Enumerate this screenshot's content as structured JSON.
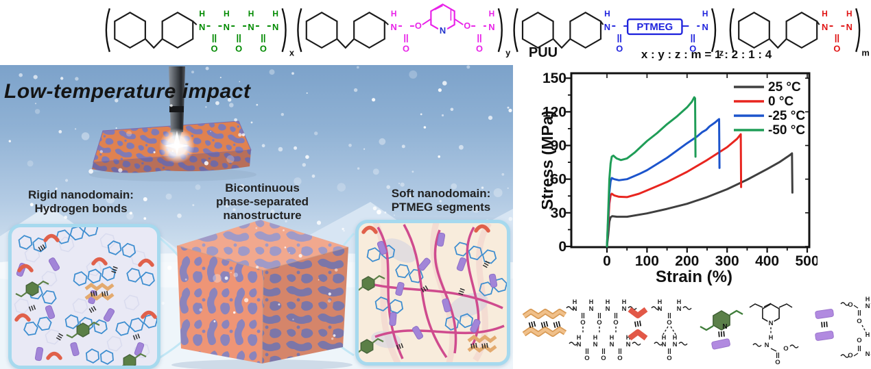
{
  "polymer": {
    "name": "PUU",
    "ratio": "x : y : z : m = 1 : 2 : 1 : 4",
    "ptmeg": "PTMEG",
    "sub_x": "x",
    "sub_y": "y",
    "sub_z": "z",
    "sub_m": "m",
    "H": "H",
    "N": "N",
    "O": "O",
    "colors": {
      "backbone": "#1b1b1b",
      "biuret": "#008a00",
      "carbamate": "#e822e8",
      "pyridine_n": "#2233cc",
      "ptmeg": "#2024dd",
      "urea": "#e01414"
    }
  },
  "scene": {
    "title": "Low-temperature impact",
    "rigid_label": [
      "Rigid nanodomain:",
      "Hydrogen bonds"
    ],
    "bicontinuous_label": [
      "Bicontinuous",
      "phase-separated",
      "nanostructure"
    ],
    "soft_label": [
      "Soft nanodomain:",
      "PTMEG segments"
    ],
    "colors": {
      "phase_orange": "#ee9576",
      "phase_purple": "#8b84bb"
    }
  },
  "chart_data": {
    "type": "line",
    "title": "",
    "xlabel": "Strain (%)",
    "ylabel": "Stress (MPa)",
    "xlim": [
      0,
      500
    ],
    "ylim": [
      0,
      150
    ],
    "x_ticks": [
      0,
      100,
      200,
      300,
      400,
      500
    ],
    "y_ticks": [
      0,
      30,
      60,
      90,
      120,
      150
    ],
    "grid": false,
    "legend_position": "top-right",
    "series": [
      {
        "name": "25 °C",
        "color": "#3f3f3f",
        "points": [
          [
            0,
            0
          ],
          [
            3,
            10
          ],
          [
            6,
            22
          ],
          [
            9,
            26
          ],
          [
            13,
            27
          ],
          [
            25,
            26.5
          ],
          [
            50,
            26.5
          ],
          [
            100,
            29.5
          ],
          [
            150,
            33.5
          ],
          [
            200,
            38
          ],
          [
            250,
            44
          ],
          [
            300,
            51
          ],
          [
            350,
            59.5
          ],
          [
            400,
            69
          ],
          [
            430,
            75
          ],
          [
            455,
            81
          ],
          [
            462,
            83
          ],
          [
            463,
            48
          ]
        ]
      },
      {
        "name": "0 °C",
        "color": "#e8251f",
        "points": [
          [
            0,
            0
          ],
          [
            3,
            20
          ],
          [
            6,
            38
          ],
          [
            9,
            45.5
          ],
          [
            12,
            47
          ],
          [
            18,
            45.5
          ],
          [
            30,
            44.3
          ],
          [
            50,
            44
          ],
          [
            80,
            47
          ],
          [
            100,
            50
          ],
          [
            150,
            57.5
          ],
          [
            200,
            66.5
          ],
          [
            250,
            77
          ],
          [
            300,
            88.5
          ],
          [
            325,
            96
          ],
          [
            334,
            100
          ],
          [
            335,
            53
          ]
        ]
      },
      {
        "name": "-25 °C",
        "color": "#1c54cc",
        "points": [
          [
            0,
            0
          ],
          [
            3,
            25
          ],
          [
            6,
            48
          ],
          [
            9,
            58
          ],
          [
            12,
            61
          ],
          [
            18,
            60
          ],
          [
            30,
            59
          ],
          [
            50,
            60
          ],
          [
            80,
            64.5
          ],
          [
            100,
            68
          ],
          [
            150,
            79
          ],
          [
            200,
            92
          ],
          [
            225,
            98
          ],
          [
            238,
            102
          ],
          [
            248,
            104
          ],
          [
            256,
            107
          ],
          [
            270,
            110.5
          ],
          [
            278,
            113
          ],
          [
            280,
            113.5
          ],
          [
            281,
            70
          ]
        ]
      },
      {
        "name": "-50 °C",
        "color": "#1f9d57",
        "points": [
          [
            0,
            0
          ],
          [
            3,
            30
          ],
          [
            6,
            60
          ],
          [
            9,
            74
          ],
          [
            12,
            80
          ],
          [
            16,
            81
          ],
          [
            24,
            78.5
          ],
          [
            35,
            77
          ],
          [
            50,
            78.5
          ],
          [
            70,
            84
          ],
          [
            100,
            94
          ],
          [
            125,
            101
          ],
          [
            150,
            109
          ],
          [
            175,
            116
          ],
          [
            200,
            124
          ],
          [
            212,
            129
          ],
          [
            218,
            133
          ],
          [
            220,
            132
          ],
          [
            221,
            80
          ]
        ]
      }
    ]
  },
  "hbond_legend": {
    "H": "H",
    "N": "N",
    "O": "O",
    "motifs": [
      {
        "name": "biuret-biuret-hydrogen-bonds",
        "icon": "orange-zigzag-pair"
      },
      {
        "name": "urea-urea-hydrogen-bonds",
        "icon": "red-chevron-pair"
      },
      {
        "name": "pyridine-carbamate-hydrogen-bond",
        "icon": "green-ring-purple-rod"
      },
      {
        "name": "carbamate-carbamate-hydrogen-bonds",
        "icon": "purple-rod-pair"
      }
    ]
  }
}
